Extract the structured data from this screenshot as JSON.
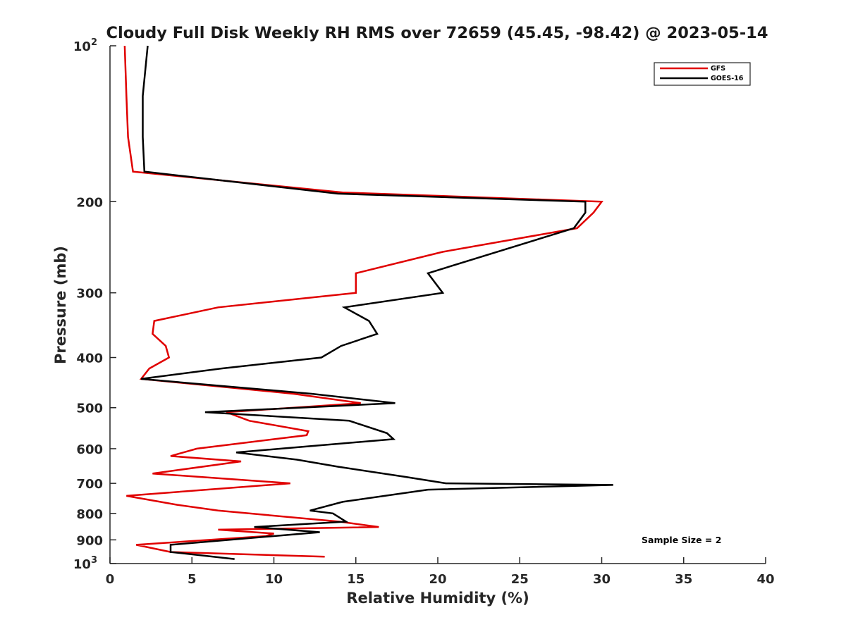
{
  "chart_data": {
    "type": "line",
    "title": "Cloudy Full Disk Weekly RH RMS over 72659 (45.45, -98.42) @ 2023-05-14",
    "xlabel": "Relative Humidity (%)",
    "ylabel": "Pressure (mb)",
    "xlim": [
      0,
      40
    ],
    "ylim": [
      100,
      1000
    ],
    "yscale": "log",
    "y_reversed": true,
    "x_ticks": [
      "0",
      "5",
      "10",
      "15",
      "20",
      "25",
      "30",
      "35",
      "40"
    ],
    "y_ticks": [
      {
        "value": 100,
        "label": "10",
        "sup": "2"
      },
      {
        "value": 200,
        "label": "200",
        "sup": ""
      },
      {
        "value": 300,
        "label": "300",
        "sup": ""
      },
      {
        "value": 400,
        "label": "400",
        "sup": ""
      },
      {
        "value": 500,
        "label": "500",
        "sup": ""
      },
      {
        "value": 600,
        "label": "600",
        "sup": ""
      },
      {
        "value": 700,
        "label": "700",
        "sup": ""
      },
      {
        "value": 800,
        "label": "800",
        "sup": ""
      },
      {
        "value": 900,
        "label": "900",
        "sup": ""
      },
      {
        "value": 1000,
        "label": "10",
        "sup": "3"
      }
    ],
    "grid": false,
    "legend_position": "top-right",
    "annotation": "Sample Size = 2",
    "series": [
      {
        "name": "GFS",
        "color": "#e00000",
        "points": [
          [
            0.9,
            100
          ],
          [
            1.0,
            125
          ],
          [
            1.1,
            150
          ],
          [
            1.4,
            175
          ],
          [
            14.2,
            192
          ],
          [
            30.0,
            200
          ],
          [
            29.5,
            210
          ],
          [
            28.5,
            225
          ],
          [
            20.3,
            250
          ],
          [
            15.0,
            275
          ],
          [
            15.0,
            300
          ],
          [
            6.6,
            320
          ],
          [
            2.7,
            340
          ],
          [
            2.6,
            360
          ],
          [
            3.4,
            380
          ],
          [
            3.6,
            400
          ],
          [
            2.4,
            420
          ],
          [
            1.9,
            440
          ],
          [
            11.2,
            470
          ],
          [
            15.3,
            490
          ],
          [
            7.1,
            510
          ],
          [
            8.5,
            530
          ],
          [
            12.1,
            555
          ],
          [
            12.0,
            565
          ],
          [
            5.3,
            600
          ],
          [
            3.7,
            620
          ],
          [
            8.0,
            635
          ],
          [
            2.6,
            670
          ],
          [
            11.0,
            700
          ],
          [
            1.0,
            740
          ],
          [
            4.1,
            770
          ],
          [
            6.6,
            790
          ],
          [
            14.0,
            830
          ],
          [
            16.4,
            850
          ],
          [
            6.6,
            860
          ],
          [
            10.0,
            875
          ],
          [
            9.5,
            885
          ],
          [
            1.6,
            920
          ],
          [
            3.7,
            950
          ],
          [
            13.1,
            970
          ]
        ]
      },
      {
        "name": "GOES-16",
        "color": "#000000",
        "points": [
          [
            2.3,
            100
          ],
          [
            2.0,
            125
          ],
          [
            2.0,
            150
          ],
          [
            2.1,
            175
          ],
          [
            13.9,
            193
          ],
          [
            29.0,
            200
          ],
          [
            29.0,
            210
          ],
          [
            28.3,
            225
          ],
          [
            19.4,
            275
          ],
          [
            20.3,
            300
          ],
          [
            14.3,
            320
          ],
          [
            15.8,
            340
          ],
          [
            16.3,
            360
          ],
          [
            14.1,
            380
          ],
          [
            12.9,
            400
          ],
          [
            6.8,
            420
          ],
          [
            1.9,
            440
          ],
          [
            12.3,
            470
          ],
          [
            17.4,
            490
          ],
          [
            5.8,
            510
          ],
          [
            14.6,
            530
          ],
          [
            16.9,
            560
          ],
          [
            17.3,
            575
          ],
          [
            7.7,
            610
          ],
          [
            11.4,
            630
          ],
          [
            13.9,
            650
          ],
          [
            18.0,
            680
          ],
          [
            20.5,
            700
          ],
          [
            30.7,
            705
          ],
          [
            19.4,
            720
          ],
          [
            14.2,
            760
          ],
          [
            12.2,
            790
          ],
          [
            13.6,
            800
          ],
          [
            14.4,
            830
          ],
          [
            8.8,
            850
          ],
          [
            12.8,
            870
          ],
          [
            3.7,
            920
          ],
          [
            3.7,
            950
          ],
          [
            7.6,
            980
          ]
        ]
      }
    ]
  }
}
